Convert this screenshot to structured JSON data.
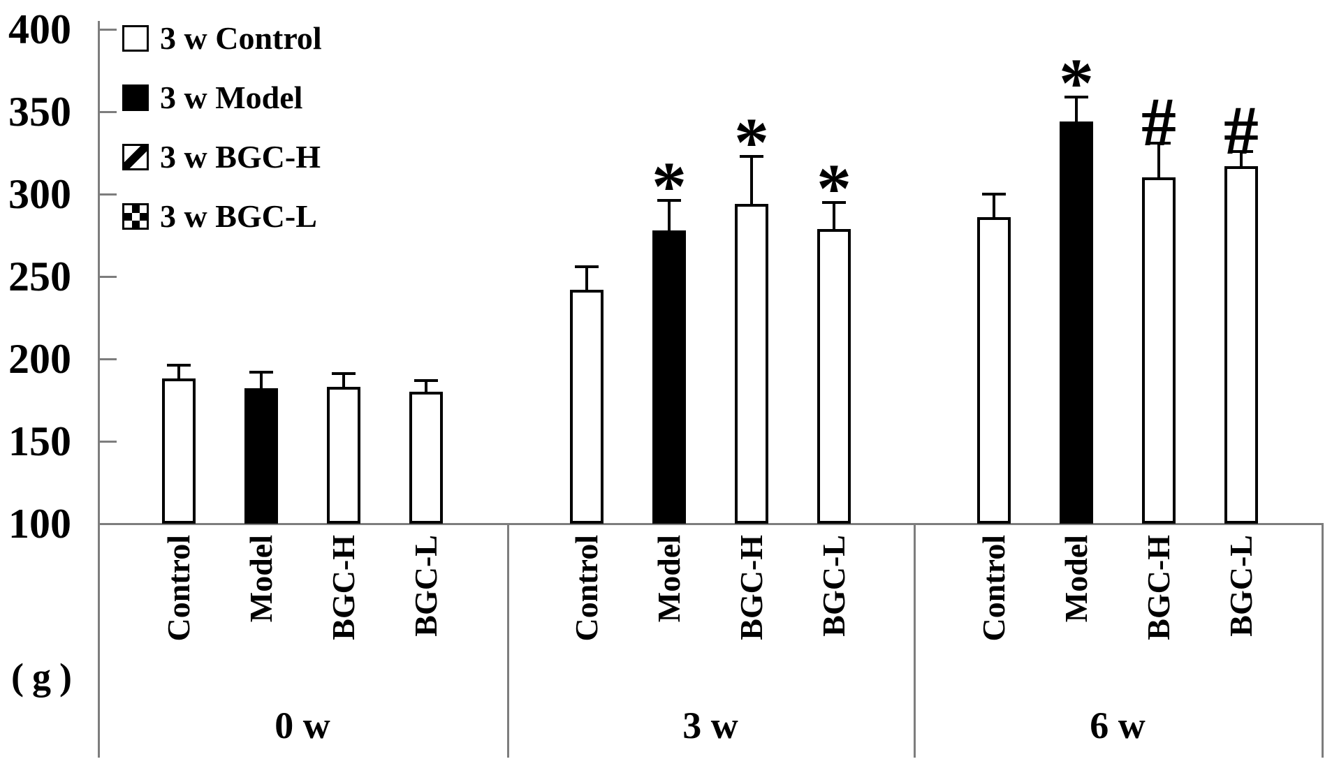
{
  "chart_data": {
    "type": "bar",
    "title": "",
    "xlabel": "",
    "ylabel": "(g)",
    "ylim": [
      100,
      400
    ],
    "yticks": [
      400,
      350,
      300,
      250,
      200,
      150,
      100
    ],
    "grid": false,
    "legend_position": "top-left",
    "groups": [
      "0 w",
      "3 w",
      "6 w"
    ],
    "bar_labels": [
      "Control",
      "Model",
      "BGC-H",
      "BGC-L"
    ],
    "series": [
      {
        "name": "3 w Control",
        "pattern": "plain",
        "values": [
          188,
          242,
          286
        ],
        "errors": [
          8,
          14,
          14
        ],
        "sig": [
          "",
          "",
          ""
        ]
      },
      {
        "name": "3 w Model",
        "pattern": "solid",
        "values": [
          182,
          278,
          344
        ],
        "errors": [
          10,
          18,
          15
        ],
        "sig": [
          "",
          "*",
          "*"
        ]
      },
      {
        "name": "3 w BGC-H",
        "pattern": "diagonal",
        "values": [
          183,
          294,
          310
        ],
        "errors": [
          8,
          29,
          21
        ],
        "sig": [
          "",
          "*",
          "#"
        ]
      },
      {
        "name": "3 w BGC-L",
        "pattern": "checker",
        "values": [
          180,
          279,
          317
        ],
        "errors": [
          7,
          16,
          9
        ],
        "sig": [
          "",
          "*",
          "#"
        ]
      }
    ],
    "annotations": {
      "asterisk_marker": "*",
      "hash_marker": "#"
    },
    "colors": {
      "axis": "#7d7d7d",
      "bar_outline": "#000000",
      "text": "#000000",
      "background": "#ffffff"
    }
  }
}
